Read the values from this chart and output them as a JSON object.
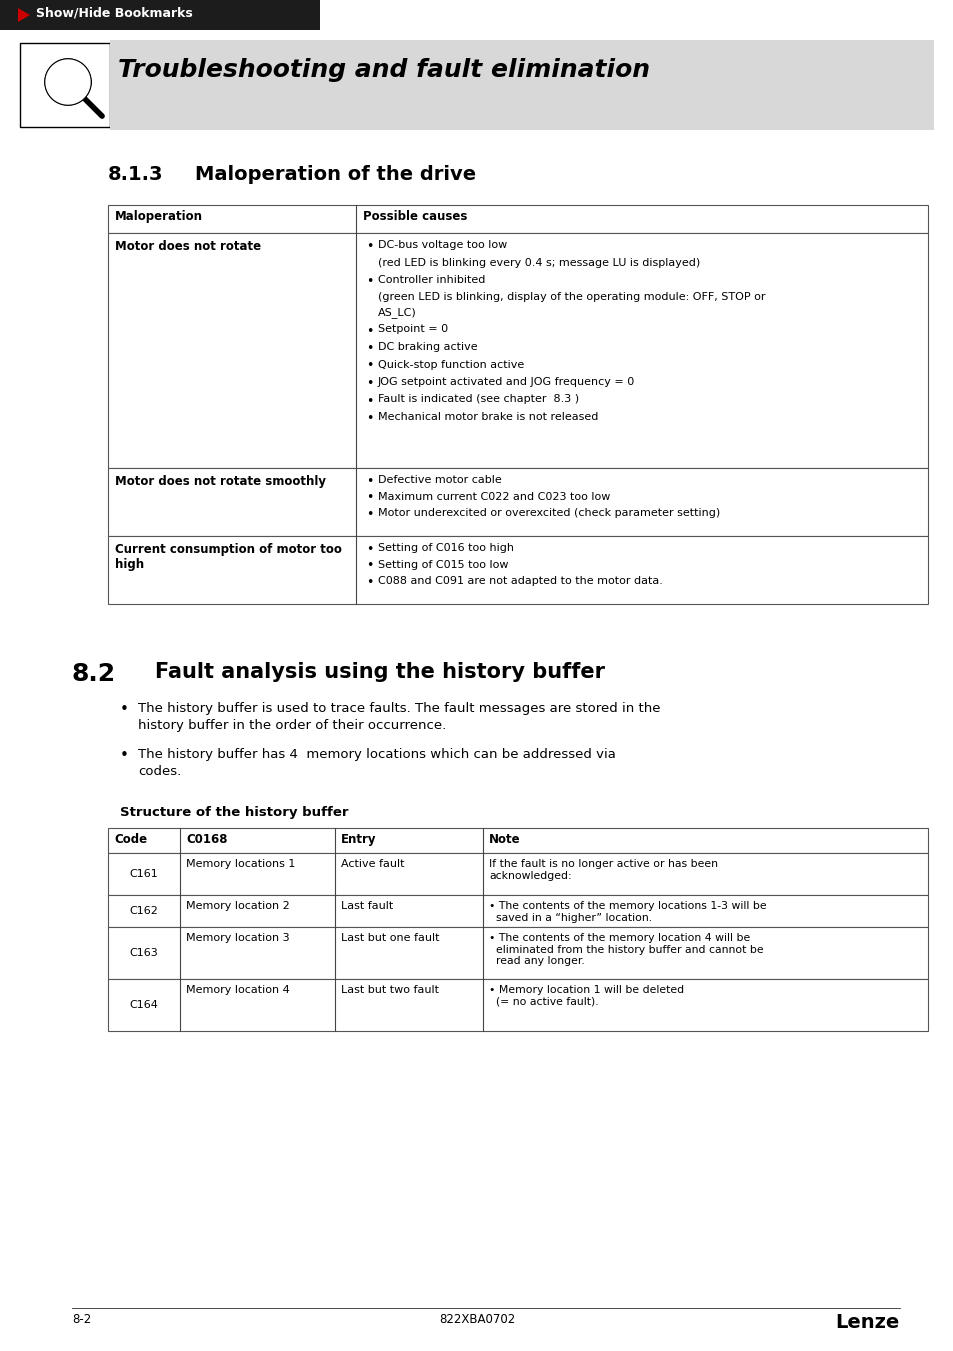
{
  "bg_color": "#ffffff",
  "header_bar_color": "#1c1c1c",
  "header_text": "Show/Hide Bookmarks",
  "header_arrow_color": "#cc0000",
  "banner_bg_color": "#d8d8d8",
  "banner_title": "Troubleshooting and fault elimination",
  "section_813_num": "8.1.3",
  "section_813_title": "Maloperation of the drive",
  "table1_headers": [
    "Maloperation",
    "Possible causes"
  ],
  "table1_rows": [
    {
      "col1": "Motor does not rotate",
      "col2_items": [
        {
          "text": "DC-bus voltage too low",
          "indent": false
        },
        {
          "text": "(red LED is blinking every 0.4 s; message LU is displayed)",
          "indent": true
        },
        {
          "text": "Controller inhibited",
          "indent": false
        },
        {
          "text": "(green LED is blinking, display of the operating module: OFF, STOP or\nAS_LC)",
          "indent": true
        },
        {
          "text": "Setpoint = 0",
          "indent": false
        },
        {
          "text": "DC braking active",
          "indent": false
        },
        {
          "text": "Quick-stop function active",
          "indent": false
        },
        {
          "text": "JOG setpoint activated and JOG frequency = 0",
          "indent": false
        },
        {
          "text": "Fault is indicated (see chapter  8.3 )",
          "indent": false
        },
        {
          "text": "Mechanical motor brake is not released",
          "indent": false
        }
      ]
    },
    {
      "col1": "Motor does not rotate smoothly",
      "col2_items": [
        {
          "text": "Defective motor cable",
          "indent": false
        },
        {
          "text": "Maximum current C022 and C023 too low",
          "indent": false
        },
        {
          "text": "Motor underexcited or overexcited (check parameter setting)",
          "indent": false
        }
      ]
    },
    {
      "col1": "Current consumption of motor too\nhigh",
      "col2_items": [
        {
          "text": "Setting of C016 too high",
          "indent": false
        },
        {
          "text": "Setting of C015 too low",
          "indent": false
        },
        {
          "text": "C088 and C091 are not adapted to the motor data.",
          "indent": false
        }
      ]
    }
  ],
  "section_82_num": "8.2",
  "section_82_title": "Fault analysis using the history buffer",
  "bullets_82": [
    "The history buffer is used to trace faults. The fault messages are stored in the\nhistory buffer in the order of their occurrence.",
    "The history buffer has 4  memory locations which can be addressed via\ncodes."
  ],
  "struct_title": "Structure of the history buffer",
  "table2_headers": [
    "Code",
    "C0168",
    "Entry",
    "Note"
  ],
  "table2_rows": [
    {
      "code": "C161",
      "c0168": "Memory locations 1",
      "entry": "Active fault",
      "note": "If the fault is no longer active or has been\nacknowledged:"
    },
    {
      "code": "C162",
      "c0168": "Memory location 2",
      "entry": "Last fault",
      "note": "• The contents of the memory locations 1-3 will be\n  saved in a “higher” location."
    },
    {
      "code": "C163",
      "c0168": "Memory location 3",
      "entry": "Last but one fault",
      "note": "• The contents of the memory location 4 will be\n  eliminated from the history buffer and cannot be\n  read any longer."
    },
    {
      "code": "C164",
      "c0168": "Memory location 4",
      "entry": "Last but two fault",
      "note": "• Memory location 1 will be deleted\n  (= no active fault)."
    }
  ],
  "footer_left": "8-2",
  "footer_center": "822XBA0702",
  "footer_right": "Lenze"
}
